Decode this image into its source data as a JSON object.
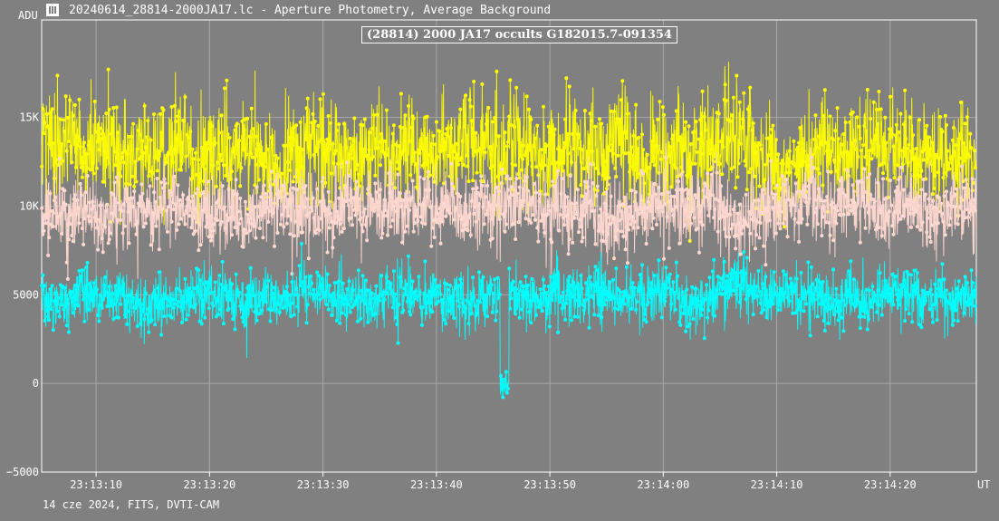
{
  "window": {
    "icon": "lightcurve-app-icon",
    "title": "20240614_28814-2000JA17.lc - Aperture Photometry, Average Background"
  },
  "footer": {
    "text": "14 cze 2024, FITS, DVTI-CAM"
  },
  "colors": {
    "background": "#808080",
    "grid": "#a8a8a8",
    "axis": "#ffffff",
    "target": "#00ffff",
    "comparison": "#ffd8d0",
    "sum": "#ffff00"
  },
  "chart_data": {
    "type": "line",
    "title": "(28814) 2000 JA17 occults G182015.7-091354",
    "xlabel": "UT",
    "ylabel": "ADU",
    "xlim": [
      "23:13:05.2",
      "23:14:27.6"
    ],
    "ylim": [
      -5000,
      20500
    ],
    "x_ticks": [
      "23:13:10",
      "23:13:20",
      "23:13:30",
      "23:13:40",
      "23:13:50",
      "23:14:00",
      "23:14:10",
      "23:14:20"
    ],
    "y_ticks": [
      {
        "value": -5000,
        "label": "−5000"
      },
      {
        "value": 0,
        "label": "0"
      },
      {
        "value": 5000,
        "label": "5000"
      },
      {
        "value": 10000,
        "label": "10K"
      },
      {
        "value": 15000,
        "label": "15K"
      }
    ],
    "grid": true,
    "legend": "none",
    "frame_count": 2700,
    "series": [
      {
        "color_key": "sum",
        "mean": 13000,
        "sd": 1700,
        "features": []
      },
      {
        "color_key": "comparison",
        "mean": 9800,
        "sd": 1200,
        "features": []
      },
      {
        "color_key": "target",
        "mean": 4900,
        "sd": 900,
        "features": [
          {
            "type": "occultation",
            "start": "23:13:45.6",
            "end": "23:13:46.4",
            "level": 0
          }
        ]
      }
    ]
  }
}
